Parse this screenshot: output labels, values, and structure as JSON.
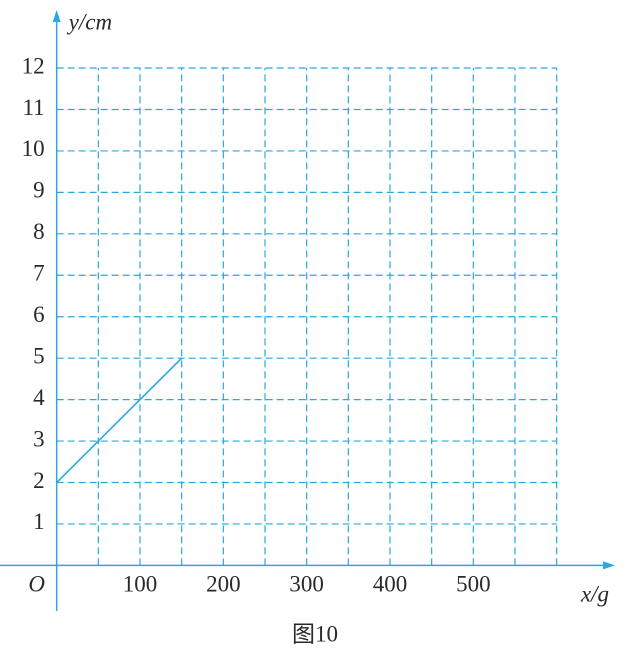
{
  "chart_data": {
    "type": "line",
    "x_label": "x/g",
    "y_label": "y/cm",
    "origin_label": "O",
    "caption": "图10",
    "x": [
      0,
      150
    ],
    "series": [
      {
        "color": "#29a9e0",
        "values": [
          2,
          5
        ]
      }
    ],
    "xlim": [
      -68,
      670
    ],
    "ylim": [
      -1.1,
      13.4
    ],
    "xticks": [
      100,
      200,
      300,
      400,
      500
    ],
    "xgrid": [
      50,
      100,
      150,
      200,
      250,
      300,
      350,
      400,
      450,
      500,
      550,
      600
    ],
    "yticks": [
      1,
      2,
      3,
      4,
      5,
      6,
      7,
      8,
      9,
      10,
      11,
      12
    ],
    "grid": true,
    "axis_color": "#29a9e0"
  }
}
